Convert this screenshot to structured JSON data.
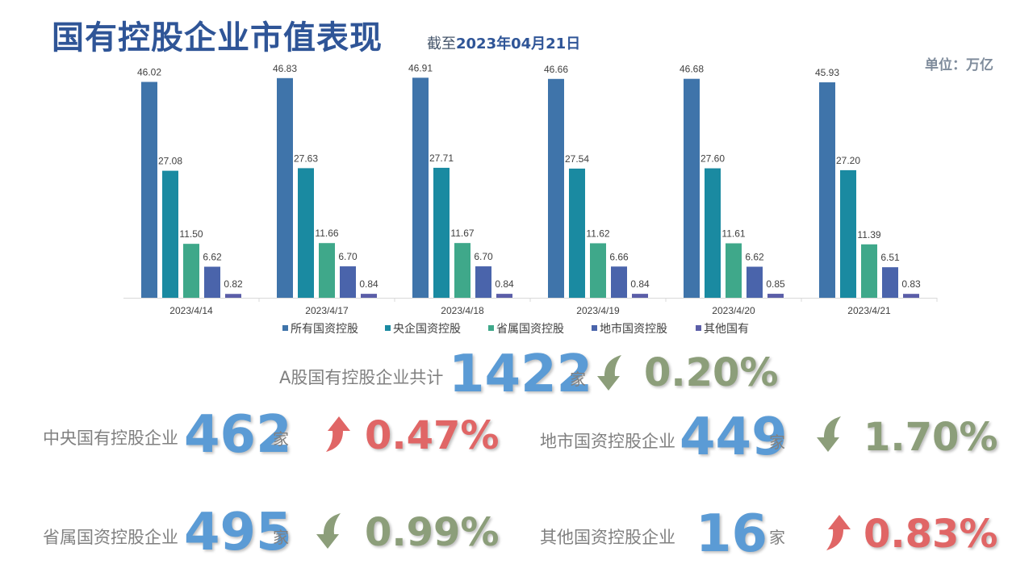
{
  "title": "国有控股企业市值表现",
  "subtitle_prefix": "截至",
  "subtitle_date": "2023年04月21日",
  "unit": "单位：万亿",
  "colors": {
    "up": "#e06666",
    "down": "#8c9e7a",
    "number": "#5b9bd5"
  },
  "chart_data": {
    "type": "bar",
    "categories": [
      "2023/4/14",
      "2023/4/17",
      "2023/4/18",
      "2023/4/19",
      "2023/4/20",
      "2023/4/21"
    ],
    "series": [
      {
        "name": "所有国资控股",
        "color": "#3f74aa",
        "values": [
          46.02,
          46.83,
          46.91,
          46.66,
          46.68,
          45.93
        ]
      },
      {
        "name": "央企国资控股",
        "color": "#1a8aa1",
        "values": [
          27.08,
          27.63,
          27.71,
          27.54,
          27.6,
          27.2
        ]
      },
      {
        "name": "省属国资控股",
        "color": "#3fa88a",
        "values": [
          11.5,
          11.66,
          11.67,
          11.62,
          11.61,
          11.39
        ]
      },
      {
        "name": "地市国资控股",
        "color": "#4a64ab",
        "values": [
          6.62,
          6.7,
          6.7,
          6.66,
          6.62,
          6.51
        ]
      },
      {
        "name": "其他国有",
        "color": "#5b5ea8",
        "values": [
          0.82,
          0.84,
          0.84,
          0.84,
          0.85,
          0.83
        ]
      }
    ],
    "ylim": [
      0,
      48
    ],
    "grid": false,
    "legend": "bottom"
  },
  "stats": {
    "total": {
      "label": "A股国有控股企业共计",
      "count": "1422",
      "suffix": "家",
      "change": "0.20%",
      "direction": "down"
    },
    "central": {
      "label": "中央国有控股企业",
      "count": "462",
      "suffix": "家",
      "change": "0.47%",
      "direction": "up"
    },
    "municipal": {
      "label": "地市国资控股企业",
      "count": "449",
      "suffix": "家",
      "change": "1.70%",
      "direction": "down"
    },
    "provincial": {
      "label": "省属国资控股企业",
      "count": "495",
      "suffix": "家",
      "change": "0.99%",
      "direction": "down"
    },
    "other": {
      "label": "其他国资控股企业",
      "count": "16",
      "suffix": "家",
      "change": "0.83%",
      "direction": "up"
    }
  }
}
